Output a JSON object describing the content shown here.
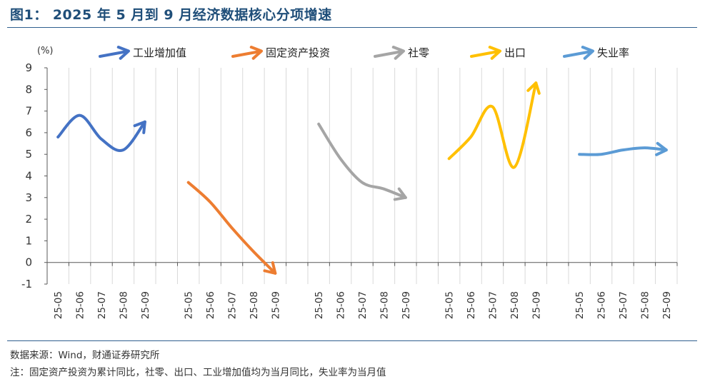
{
  "title": "图1：  2025 年 5 月到 9 月经济数据核心分项增速",
  "source": "数据来源：Wind，财通证券研究所",
  "note": "注：固定资产投资为累计同比，社零、出口、工业增加值均为当月同比，失业率为当月值",
  "chart_data": {
    "type": "line",
    "y_unit": "(%)",
    "ylim": [
      -1,
      9
    ],
    "yticks": [
      -1,
      0,
      1,
      2,
      3,
      4,
      5,
      6,
      7,
      8,
      9
    ],
    "grid": "vertical",
    "legend_position": "top",
    "categories": [
      "25-05",
      "25-06",
      "25-07",
      "25-08",
      "25-09"
    ],
    "series": [
      {
        "name": "工业增加值",
        "color": "#4472c4",
        "values": [
          5.8,
          6.8,
          5.7,
          5.2,
          6.5
        ]
      },
      {
        "name": "固定资产投资",
        "color": "#ed7d31",
        "values": [
          3.7,
          2.8,
          1.6,
          0.5,
          -0.5
        ]
      },
      {
        "name": "社零",
        "color": "#a5a5a5",
        "values": [
          6.4,
          4.8,
          3.7,
          3.4,
          3.0
        ]
      },
      {
        "name": "出口",
        "color": "#ffc000",
        "values": [
          4.8,
          5.8,
          7.2,
          4.4,
          8.3
        ]
      },
      {
        "name": "失业率",
        "color": "#5b9bd5",
        "values": [
          5.0,
          5.0,
          5.2,
          5.3,
          5.2
        ]
      }
    ]
  }
}
